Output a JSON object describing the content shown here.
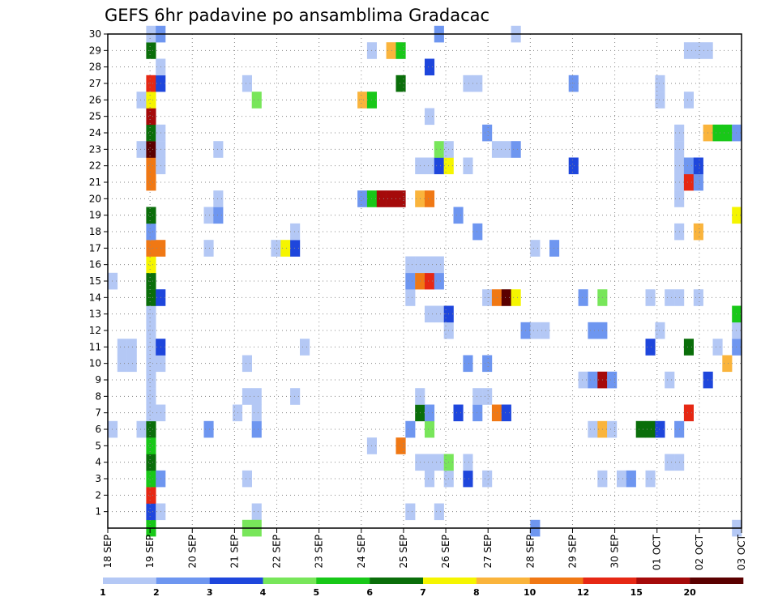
{
  "chart_data": {
    "type": "heatmap",
    "title": "GEFS 6hr padavine po ansamblima Gradacac",
    "xlabel": "",
    "ylabel": "",
    "y_range": [
      0,
      30
    ],
    "y_ticks": [
      1,
      2,
      3,
      4,
      5,
      6,
      7,
      8,
      9,
      10,
      11,
      12,
      13,
      14,
      15,
      16,
      17,
      18,
      19,
      20,
      21,
      22,
      23,
      24,
      25,
      26,
      27,
      28,
      29,
      30
    ],
    "x_ticks": [
      "18 SEP",
      "19 SEP",
      "20 SEP",
      "21 SEP",
      "22 SEP",
      "23 SEP",
      "24 SEP",
      "25 SEP",
      "26 SEP",
      "27 SEP",
      "28 SEP",
      "29 SEP",
      "30 SEP",
      "01 OCT",
      "02 OCT",
      "03 OCT"
    ],
    "time_step_hours": 6,
    "grid": "dotted",
    "legend": {
      "placement": "bottom",
      "labels": [
        "1",
        "2",
        "3",
        "4",
        "5",
        "6",
        "7",
        "8",
        "10",
        "12",
        "15",
        "20"
      ],
      "colors": [
        "#b4c8f5",
        "#6e96f0",
        "#1e46dc",
        "#78e65a",
        "#18c818",
        "#0a6e0a",
        "#f5f500",
        "#fab43c",
        "#f07814",
        "#e62814",
        "#a50a0a",
        "#5a0000"
      ]
    },
    "cells_note": "each cell: [step index from 18 SEP 00z (6h steps), ensemble member, legend class index 0-11]",
    "cells": [
      [
        0,
        6,
        0
      ],
      [
        0,
        15,
        0
      ],
      [
        1,
        10,
        0
      ],
      [
        1,
        11,
        0
      ],
      [
        2,
        10,
        0
      ],
      [
        2,
        11,
        0
      ],
      [
        3,
        6,
        0
      ],
      [
        3,
        23,
        0
      ],
      [
        3,
        26,
        0
      ],
      [
        4,
        0,
        4
      ],
      [
        4,
        1,
        2
      ],
      [
        4,
        2,
        9
      ],
      [
        4,
        3,
        4
      ],
      [
        4,
        4,
        5
      ],
      [
        4,
        5,
        4
      ],
      [
        4,
        6,
        5
      ],
      [
        4,
        7,
        0
      ],
      [
        4,
        8,
        0
      ],
      [
        4,
        9,
        0
      ],
      [
        4,
        10,
        0
      ],
      [
        4,
        11,
        0
      ],
      [
        4,
        12,
        0
      ],
      [
        4,
        13,
        0
      ],
      [
        4,
        14,
        5
      ],
      [
        4,
        15,
        5
      ],
      [
        4,
        16,
        6
      ],
      [
        4,
        17,
        8
      ],
      [
        4,
        18,
        1
      ],
      [
        4,
        19,
        5
      ],
      [
        4,
        21,
        8
      ],
      [
        4,
        22,
        8
      ],
      [
        4,
        23,
        11
      ],
      [
        4,
        24,
        5
      ],
      [
        4,
        25,
        10
      ],
      [
        4,
        26,
        6
      ],
      [
        4,
        27,
        9
      ],
      [
        4,
        29,
        5
      ],
      [
        4,
        30,
        0
      ],
      [
        5,
        1,
        0
      ],
      [
        5,
        3,
        1
      ],
      [
        5,
        7,
        0
      ],
      [
        5,
        10,
        0
      ],
      [
        5,
        11,
        2
      ],
      [
        5,
        14,
        2
      ],
      [
        5,
        17,
        8
      ],
      [
        5,
        22,
        0
      ],
      [
        5,
        23,
        0
      ],
      [
        5,
        24,
        0
      ],
      [
        5,
        27,
        2
      ],
      [
        5,
        28,
        0
      ],
      [
        5,
        30,
        1
      ],
      [
        10,
        6,
        1
      ],
      [
        10,
        17,
        0
      ],
      [
        10,
        19,
        0
      ],
      [
        11,
        19,
        1
      ],
      [
        11,
        20,
        0
      ],
      [
        11,
        23,
        0
      ],
      [
        13,
        7,
        0
      ],
      [
        14,
        0,
        3
      ],
      [
        14,
        3,
        0
      ],
      [
        14,
        8,
        0
      ],
      [
        14,
        10,
        0
      ],
      [
        14,
        27,
        0
      ],
      [
        15,
        1,
        0
      ],
      [
        15,
        0,
        3
      ],
      [
        15,
        6,
        1
      ],
      [
        15,
        7,
        0
      ],
      [
        15,
        8,
        0
      ],
      [
        15,
        26,
        3
      ],
      [
        17,
        17,
        0
      ],
      [
        18,
        17,
        6
      ],
      [
        19,
        8,
        0
      ],
      [
        19,
        17,
        2
      ],
      [
        19,
        18,
        0
      ],
      [
        20,
        11,
        0
      ],
      [
        26,
        20,
        1
      ],
      [
        26,
        26,
        7
      ],
      [
        27,
        5,
        0
      ],
      [
        27,
        20,
        4
      ],
      [
        27,
        26,
        4
      ],
      [
        27,
        29,
        0
      ],
      [
        28,
        20,
        10
      ],
      [
        29,
        20,
        10
      ],
      [
        29,
        29,
        7
      ],
      [
        30,
        5,
        8
      ],
      [
        30,
        20,
        10
      ],
      [
        30,
        27,
        5
      ],
      [
        30,
        29,
        4
      ],
      [
        31,
        1,
        0
      ],
      [
        31,
        6,
        1
      ],
      [
        31,
        14,
        0
      ],
      [
        31,
        15,
        1
      ],
      [
        31,
        16,
        0
      ],
      [
        32,
        4,
        0
      ],
      [
        32,
        7,
        5
      ],
      [
        32,
        8,
        0
      ],
      [
        32,
        15,
        8
      ],
      [
        32,
        16,
        0
      ],
      [
        32,
        20,
        7
      ],
      [
        32,
        22,
        0
      ],
      [
        33,
        3,
        0
      ],
      [
        33,
        4,
        0
      ],
      [
        33,
        6,
        3
      ],
      [
        33,
        7,
        1
      ],
      [
        33,
        13,
        0
      ],
      [
        33,
        15,
        9
      ],
      [
        33,
        16,
        0
      ],
      [
        33,
        20,
        8
      ],
      [
        33,
        22,
        0
      ],
      [
        33,
        25,
        0
      ],
      [
        33,
        28,
        2
      ],
      [
        34,
        1,
        0
      ],
      [
        34,
        4,
        0
      ],
      [
        34,
        13,
        0
      ],
      [
        34,
        15,
        1
      ],
      [
        34,
        16,
        0
      ],
      [
        34,
        22,
        2
      ],
      [
        34,
        23,
        3
      ],
      [
        34,
        30,
        1
      ],
      [
        35,
        3,
        0
      ],
      [
        35,
        4,
        3
      ],
      [
        35,
        12,
        0
      ],
      [
        35,
        13,
        2
      ],
      [
        35,
        22,
        6
      ],
      [
        35,
        23,
        0
      ],
      [
        36,
        7,
        2
      ],
      [
        36,
        19,
        1
      ],
      [
        37,
        3,
        2
      ],
      [
        37,
        4,
        0
      ],
      [
        37,
        10,
        1
      ],
      [
        37,
        22,
        0
      ],
      [
        37,
        27,
        0
      ],
      [
        38,
        7,
        1
      ],
      [
        38,
        8,
        0
      ],
      [
        38,
        18,
        1
      ],
      [
        38,
        27,
        0
      ],
      [
        39,
        3,
        0
      ],
      [
        39,
        8,
        0
      ],
      [
        39,
        10,
        1
      ],
      [
        39,
        14,
        0
      ],
      [
        39,
        24,
        1
      ],
      [
        40,
        7,
        8
      ],
      [
        40,
        14,
        8
      ],
      [
        40,
        23,
        0
      ],
      [
        41,
        7,
        2
      ],
      [
        41,
        14,
        11
      ],
      [
        41,
        23,
        0
      ],
      [
        42,
        14,
        6
      ],
      [
        42,
        23,
        1
      ],
      [
        42,
        30,
        0
      ],
      [
        43,
        12,
        1
      ],
      [
        44,
        0,
        1
      ],
      [
        44,
        12,
        0
      ],
      [
        44,
        17,
        0
      ],
      [
        45,
        12,
        0
      ],
      [
        46,
        17,
        1
      ],
      [
        48,
        22,
        2
      ],
      [
        48,
        27,
        1
      ],
      [
        49,
        9,
        0
      ],
      [
        49,
        14,
        1
      ],
      [
        50,
        6,
        0
      ],
      [
        50,
        9,
        1
      ],
      [
        50,
        12,
        1
      ],
      [
        51,
        3,
        0
      ],
      [
        51,
        6,
        7
      ],
      [
        51,
        9,
        10
      ],
      [
        51,
        12,
        1
      ],
      [
        51,
        14,
        3
      ],
      [
        52,
        6,
        0
      ],
      [
        52,
        9,
        1
      ],
      [
        53,
        3,
        0
      ],
      [
        54,
        3,
        1
      ],
      [
        55,
        6,
        5
      ],
      [
        56,
        14,
        0
      ],
      [
        56,
        11,
        2
      ],
      [
        56,
        6,
        5
      ],
      [
        56,
        3,
        0
      ],
      [
        57,
        6,
        2
      ],
      [
        57,
        12,
        0
      ],
      [
        57,
        27,
        0
      ],
      [
        57,
        26,
        0
      ],
      [
        58,
        4,
        0
      ],
      [
        58,
        9,
        0
      ],
      [
        58,
        14,
        0
      ],
      [
        59,
        4,
        0
      ],
      [
        59,
        6,
        1
      ],
      [
        59,
        14,
        0
      ],
      [
        59,
        18,
        0
      ],
      [
        59,
        20,
        0
      ],
      [
        59,
        21,
        0
      ],
      [
        59,
        22,
        0
      ],
      [
        59,
        23,
        0
      ],
      [
        59,
        24,
        0
      ],
      [
        60,
        11,
        5
      ],
      [
        60,
        7,
        9
      ],
      [
        60,
        21,
        9
      ],
      [
        60,
        22,
        1
      ],
      [
        60,
        26,
        0
      ],
      [
        60,
        29,
        0
      ],
      [
        61,
        14,
        0
      ],
      [
        61,
        18,
        7
      ],
      [
        61,
        21,
        1
      ],
      [
        61,
        22,
        2
      ],
      [
        61,
        29,
        0
      ],
      [
        62,
        9,
        2
      ],
      [
        62,
        24,
        7
      ],
      [
        62,
        29,
        0
      ],
      [
        63,
        11,
        0
      ],
      [
        63,
        24,
        4
      ],
      [
        64,
        10,
        7
      ],
      [
        64,
        24,
        4
      ],
      [
        65,
        0,
        0
      ],
      [
        65,
        11,
        1
      ],
      [
        65,
        12,
        0
      ],
      [
        65,
        13,
        4
      ],
      [
        65,
        19,
        6
      ],
      [
        65,
        24,
        1
      ]
    ]
  }
}
